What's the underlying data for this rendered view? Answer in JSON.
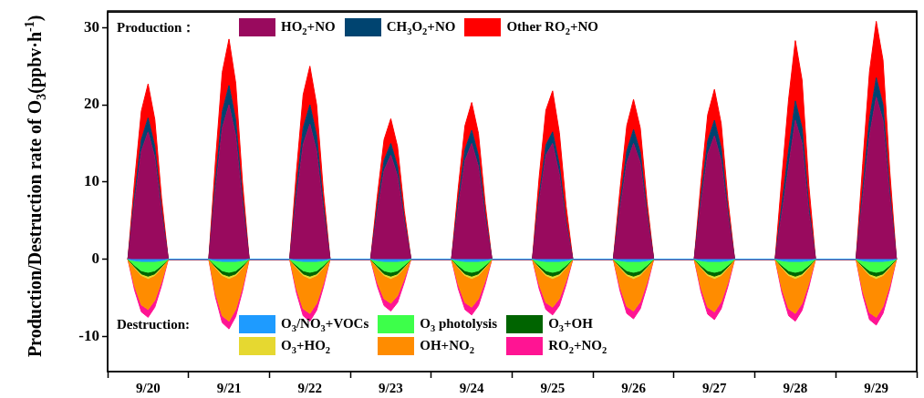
{
  "chart_data": [
    {
      "type": "area",
      "stacked": true,
      "ylabel": "Production/Destruction rate of O$_{3}$(ppbv·h$^{-1}$)",
      "legend_title": "Production：",
      "legend": "top",
      "grid": false,
      "xlim": [
        "--09-20T00:00",
        "--09-30T00:00"
      ],
      "xticks": [
        {
          "value": "--09-20T00:00",
          "label": null
        },
        {
          "value": "--09-20T12:00",
          "label": "9/20"
        },
        {
          "value": "--09-21T00:00",
          "label": null
        },
        {
          "value": "--09-21T12:00",
          "label": "9/21"
        },
        {
          "value": "--09-22T00:00",
          "label": null
        },
        {
          "value": "--09-22T12:00",
          "label": "9/22"
        },
        {
          "value": "--09-23T00:00",
          "label": null
        },
        {
          "value": "--09-23T12:00",
          "label": "9/23"
        },
        {
          "value": "--09-24T00:00",
          "label": null
        },
        {
          "value": "--09-24T12:00",
          "label": "9/24"
        },
        {
          "value": "--09-25T00:00",
          "label": null
        },
        {
          "value": "--09-25T12:00",
          "label": "9/25"
        },
        {
          "value": "--09-26T00:00",
          "label": null
        },
        {
          "value": "--09-26T12:00",
          "label": "9/26"
        },
        {
          "value": "--09-27T00:00",
          "label": null
        },
        {
          "value": "--09-27T12:00",
          "label": "9/27"
        },
        {
          "value": "--09-28T00:00",
          "label": null
        },
        {
          "value": "--09-28T12:00",
          "label": "9/28"
        },
        {
          "value": "--09-29T00:00",
          "label": null
        },
        {
          "value": "--09-29T12:00",
          "label": "9/29"
        },
        {
          "value": "--09-30T00:00",
          "label": null
        }
      ],
      "ylim": [
        -14.5,
        32
      ],
      "yticks": [
        -10,
        0,
        10,
        20,
        30
      ],
      "x": [
        "--09-20T06:00",
        "--09-20T08:00",
        "--09-20T10:00",
        "--09-20T12:00",
        "--09-20T14:00",
        "--09-20T16:00",
        "--09-20T18:00",
        "--09-21T06:00",
        "--09-21T08:00",
        "--09-21T10:00",
        "--09-21T12:00",
        "--09-21T14:00",
        "--09-21T16:00",
        "--09-21T18:00",
        "--09-22T06:00",
        "--09-22T08:00",
        "--09-22T10:00",
        "--09-22T12:00",
        "--09-22T14:00",
        "--09-22T16:00",
        "--09-22T18:00",
        "--09-23T06:00",
        "--09-23T08:00",
        "--09-23T10:00",
        "--09-23T12:00",
        "--09-23T14:00",
        "--09-23T16:00",
        "--09-23T18:00",
        "--09-24T06:00",
        "--09-24T08:00",
        "--09-24T10:00",
        "--09-24T12:00",
        "--09-24T14:00",
        "--09-24T16:00",
        "--09-24T18:00",
        "--09-25T06:00",
        "--09-25T08:00",
        "--09-25T10:00",
        "--09-25T12:00",
        "--09-25T14:00",
        "--09-25T16:00",
        "--09-25T18:00",
        "--09-26T06:00",
        "--09-26T08:00",
        "--09-26T10:00",
        "--09-26T12:00",
        "--09-26T14:00",
        "--09-26T16:00",
        "--09-26T18:00",
        "--09-27T06:00",
        "--09-27T08:00",
        "--09-27T10:00",
        "--09-27T12:00",
        "--09-27T14:00",
        "--09-27T16:00",
        "--09-27T18:00",
        "--09-28T06:00",
        "--09-28T08:00",
        "--09-28T10:00",
        "--09-28T12:00",
        "--09-28T14:00",
        "--09-28T16:00",
        "--09-28T18:00",
        "--09-29T06:00",
        "--09-29T08:00",
        "--09-29T10:00",
        "--09-29T12:00",
        "--09-29T14:00",
        "--09-29T16:00",
        "--09-29T18:00"
      ],
      "series": [
        {
          "name": "HO$_{2}$+NO",
          "color": "#990a5e",
          "values": [
            0,
            7.4,
            14,
            16.5,
            13.2,
            5.8,
            0,
            0,
            9,
            17,
            20,
            16,
            7,
            0,
            0,
            7.9,
            14.9,
            17.5,
            14,
            6.1,
            0,
            0,
            6.1,
            11.5,
            13.5,
            10.8,
            4.7,
            0,
            0,
            6.8,
            12.8,
            15,
            12,
            5.3,
            0,
            0,
            7.5,
            13.5,
            15,
            11,
            4.5,
            0,
            0,
            6.5,
            12.5,
            15,
            12.5,
            5.5,
            0,
            0,
            7.2,
            13.6,
            16,
            12.8,
            5.6,
            0,
            0,
            6,
            12,
            18,
            15,
            6,
            0,
            0,
            8,
            16,
            21,
            18,
            8,
            0
          ]
        },
        {
          "name": "CH$_{3}$O$_{2}$+NO",
          "color": "#004470",
          "values": [
            0,
            0.8,
            1.5,
            1.8,
            1.4,
            0.6,
            0,
            0,
            1.1,
            2.1,
            2.5,
            2,
            0.9,
            0,
            0,
            1.1,
            2.1,
            2.5,
            2,
            0.9,
            0,
            0,
            0.7,
            1.3,
            1.5,
            1.2,
            0.5,
            0,
            0,
            0.8,
            1.4,
            1.7,
            1.4,
            0.6,
            0,
            0,
            0.7,
            1.3,
            1.5,
            1.2,
            0.5,
            0,
            0,
            0.8,
            1.5,
            1.8,
            1.4,
            0.6,
            0,
            0,
            0.9,
            1.7,
            2,
            1.6,
            0.7,
            0,
            0,
            1.1,
            2.1,
            2.5,
            2,
            0.9,
            0,
            0,
            1.1,
            2.1,
            2.5,
            2,
            0.9,
            0
          ]
        },
        {
          "name": "Other RO$_{2}$+NO",
          "color": "#ff0000",
          "values": [
            0,
            2,
            3.7,
            4.4,
            3.5,
            1.5,
            0,
            0,
            2.7,
            5.1,
            6,
            4.8,
            2.1,
            0,
            0,
            2.3,
            4.3,
            5,
            4,
            1.8,
            0,
            0,
            1.4,
            2.7,
            3.2,
            2.6,
            1.1,
            0,
            0,
            1.6,
            3.1,
            3.6,
            2.9,
            1.3,
            0,
            0,
            2.4,
            4.5,
            5.3,
            4.2,
            1.9,
            0,
            0,
            1.8,
            3.3,
            3.9,
            3.1,
            1.4,
            0,
            0,
            1.8,
            3.4,
            4,
            3.2,
            1.4,
            0,
            0,
            3.5,
            6.6,
            7.8,
            6.2,
            2.7,
            0,
            0,
            3.3,
            6.2,
            7.3,
            5.8,
            2.6,
            0
          ]
        }
      ]
    },
    {
      "type": "area",
      "stacked": true,
      "legend_title": "Destruction:",
      "legend": "bottom",
      "grid": false,
      "xlim": [
        "--09-20T00:00",
        "--09-30T00:00"
      ],
      "ylim": [
        -14.5,
        32
      ],
      "x": [
        "--09-20T06:00",
        "--09-20T08:00",
        "--09-20T10:00",
        "--09-20T12:00",
        "--09-20T14:00",
        "--09-20T16:00",
        "--09-20T18:00",
        "--09-21T06:00",
        "--09-21T08:00",
        "--09-21T10:00",
        "--09-21T12:00",
        "--09-21T14:00",
        "--09-21T16:00",
        "--09-21T18:00",
        "--09-22T06:00",
        "--09-22T08:00",
        "--09-22T10:00",
        "--09-22T12:00",
        "--09-22T14:00",
        "--09-22T16:00",
        "--09-22T18:00",
        "--09-23T06:00",
        "--09-23T08:00",
        "--09-23T10:00",
        "--09-23T12:00",
        "--09-23T14:00",
        "--09-23T16:00",
        "--09-23T18:00",
        "--09-24T06:00",
        "--09-24T08:00",
        "--09-24T10:00",
        "--09-24T12:00",
        "--09-24T14:00",
        "--09-24T16:00",
        "--09-24T18:00",
        "--09-25T06:00",
        "--09-25T08:00",
        "--09-25T10:00",
        "--09-25T12:00",
        "--09-25T14:00",
        "--09-25T16:00",
        "--09-25T18:00",
        "--09-26T06:00",
        "--09-26T08:00",
        "--09-26T10:00",
        "--09-26T12:00",
        "--09-26T14:00",
        "--09-26T16:00",
        "--09-26T18:00",
        "--09-27T06:00",
        "--09-27T08:00",
        "--09-27T10:00",
        "--09-27T12:00",
        "--09-27T14:00",
        "--09-27T16:00",
        "--09-27T18:00",
        "--09-28T06:00",
        "--09-28T08:00",
        "--09-28T10:00",
        "--09-28T12:00",
        "--09-28T14:00",
        "--09-28T16:00",
        "--09-28T18:00",
        "--09-29T06:00",
        "--09-29T08:00",
        "--09-29T10:00",
        "--09-29T12:00",
        "--09-29T14:00",
        "--09-29T16:00",
        "--09-29T18:00"
      ],
      "series": [
        {
          "name": "O$_{3}$/NO$_{3}$+VOCs",
          "color": "#1e9bff",
          "values": [
            0,
            -0.2,
            -0.3,
            -0.3,
            -0.3,
            -0.2,
            0,
            0,
            -0.2,
            -0.3,
            -0.3,
            -0.3,
            -0.2,
            0,
            0,
            -0.2,
            -0.3,
            -0.3,
            -0.3,
            -0.2,
            0,
            0,
            -0.2,
            -0.3,
            -0.3,
            -0.3,
            -0.2,
            0,
            0,
            -0.2,
            -0.3,
            -0.3,
            -0.3,
            -0.2,
            0,
            0,
            -0.2,
            -0.3,
            -0.3,
            -0.3,
            -0.2,
            0,
            0,
            -0.2,
            -0.3,
            -0.3,
            -0.3,
            -0.2,
            0,
            0,
            -0.2,
            -0.3,
            -0.3,
            -0.3,
            -0.2,
            0,
            0,
            -0.2,
            -0.3,
            -0.3,
            -0.3,
            -0.2,
            0,
            0,
            -0.2,
            -0.3,
            -0.3,
            -0.3,
            -0.2,
            0
          ]
        },
        {
          "name": "O$_{3}$ photolysis",
          "color": "#3dff4a",
          "values": [
            0,
            -0.6,
            -1.2,
            -1.4,
            -1.2,
            -0.6,
            0,
            0,
            -0.6,
            -1.2,
            -1.4,
            -1.2,
            -0.6,
            0,
            0,
            -0.6,
            -1.2,
            -1.4,
            -1.2,
            -0.6,
            0,
            0,
            -0.6,
            -1.2,
            -1.4,
            -1.2,
            -0.6,
            0,
            0,
            -0.6,
            -1.2,
            -1.4,
            -1.2,
            -0.6,
            0,
            0,
            -0.6,
            -1.2,
            -1.4,
            -1.2,
            -0.6,
            0,
            0,
            -0.6,
            -1.2,
            -1.4,
            -1.2,
            -0.6,
            0,
            0,
            -0.6,
            -1.2,
            -1.4,
            -1.2,
            -0.6,
            0,
            0,
            -0.6,
            -1.2,
            -1.4,
            -1.2,
            -0.6,
            0,
            0,
            -0.6,
            -1.2,
            -1.4,
            -1.2,
            -0.6,
            0
          ]
        },
        {
          "name": "O$_{3}$+OH",
          "color": "#006400",
          "values": [
            0,
            -0.2,
            -0.4,
            -0.5,
            -0.4,
            -0.2,
            0,
            0,
            -0.2,
            -0.4,
            -0.5,
            -0.4,
            -0.2,
            0,
            0,
            -0.2,
            -0.4,
            -0.5,
            -0.4,
            -0.2,
            0,
            0,
            -0.2,
            -0.4,
            -0.5,
            -0.4,
            -0.2,
            0,
            0,
            -0.2,
            -0.4,
            -0.5,
            -0.4,
            -0.2,
            0,
            0,
            -0.2,
            -0.4,
            -0.5,
            -0.4,
            -0.2,
            0,
            0,
            -0.2,
            -0.4,
            -0.5,
            -0.4,
            -0.2,
            0,
            0,
            -0.2,
            -0.4,
            -0.5,
            -0.4,
            -0.2,
            0,
            0,
            -0.2,
            -0.4,
            -0.5,
            -0.4,
            -0.2,
            0,
            0,
            -0.2,
            -0.4,
            -0.5,
            -0.4,
            -0.2,
            0
          ]
        },
        {
          "name": "O$_{3}$+HO$_{2}$",
          "color": "#e6d830",
          "values": [
            0,
            -0.1,
            -0.2,
            -0.3,
            -0.2,
            -0.1,
            0,
            0,
            -0.1,
            -0.2,
            -0.3,
            -0.2,
            -0.1,
            0,
            0,
            -0.1,
            -0.2,
            -0.3,
            -0.2,
            -0.1,
            0,
            0,
            -0.1,
            -0.2,
            -0.3,
            -0.2,
            -0.1,
            0,
            0,
            -0.1,
            -0.2,
            -0.3,
            -0.2,
            -0.1,
            0,
            0,
            -0.1,
            -0.2,
            -0.3,
            -0.2,
            -0.1,
            0,
            0,
            -0.1,
            -0.2,
            -0.3,
            -0.2,
            -0.1,
            0,
            0,
            -0.1,
            -0.2,
            -0.3,
            -0.2,
            -0.1,
            0,
            0,
            -0.1,
            -0.2,
            -0.3,
            -0.2,
            -0.1,
            0,
            0,
            -0.1,
            -0.2,
            -0.3,
            -0.2,
            -0.1,
            0
          ]
        },
        {
          "name": "OH+NO$_{2}$",
          "color": "#ff8c00",
          "values": [
            0,
            -2.4,
            -3.8,
            -4,
            -3.2,
            -1.8,
            0,
            0,
            -3.3,
            -5.2,
            -5.5,
            -4.4,
            -2.5,
            0,
            0,
            -2.7,
            -4.3,
            -4.5,
            -3.6,
            -2,
            0,
            0,
            -1.9,
            -3,
            -3.2,
            -2.6,
            -1.4,
            0,
            0,
            -2.2,
            -3.5,
            -3.7,
            -3,
            -1.7,
            0,
            0,
            -2.2,
            -3.5,
            -3.7,
            -3,
            -1.7,
            0,
            0,
            -2.5,
            -4,
            -4.2,
            -3.4,
            -1.9,
            0,
            0,
            -2.6,
            -4.1,
            -4.3,
            -3.4,
            -1.9,
            0,
            0,
            -2.7,
            -4.3,
            -4.5,
            -3.6,
            -2,
            0,
            0,
            -3,
            -4.8,
            -5,
            -4,
            -2.3,
            0
          ]
        },
        {
          "name": "RO$_{2}$+NO$_{2}$",
          "color": "#ff1493",
          "values": [
            0,
            -0.5,
            -0.9,
            -1,
            -0.9,
            -0.5,
            0,
            0,
            -0.5,
            -0.9,
            -1,
            -0.9,
            -0.5,
            0,
            0,
            -0.5,
            -0.9,
            -1,
            -0.9,
            -0.5,
            0,
            0,
            -0.5,
            -0.9,
            -1,
            -0.9,
            -0.5,
            0,
            0,
            -0.5,
            -0.9,
            -1,
            -0.9,
            -0.5,
            0,
            0,
            -0.5,
            -0.9,
            -1,
            -0.9,
            -0.5,
            0,
            0,
            -0.5,
            -0.9,
            -1,
            -0.9,
            -0.5,
            0,
            0,
            -0.5,
            -0.9,
            -1,
            -0.9,
            -0.5,
            0,
            0,
            -0.5,
            -0.9,
            -1,
            -0.9,
            -0.5,
            0,
            0,
            -0.5,
            -0.9,
            -1,
            -0.9,
            -0.5,
            0
          ]
        }
      ]
    }
  ]
}
